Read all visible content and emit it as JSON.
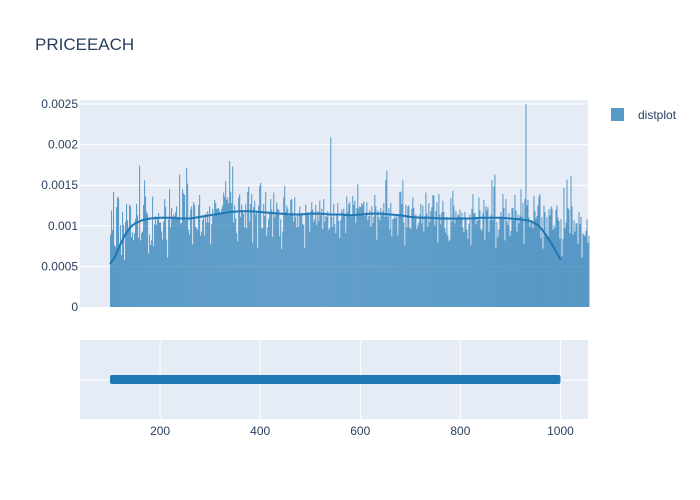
{
  "chart_data": {
    "type": "histogram",
    "title": "PRICEEACH",
    "legend": [
      {
        "name": "distplot",
        "color": "#1f77b4"
      }
    ],
    "legend_position": "top-right",
    "bar_color": "#1f77b4",
    "x_range": [
      40,
      1055
    ],
    "x_ticks": [
      200,
      400,
      600,
      800,
      1000
    ],
    "x_tick_labels": [
      "200",
      "400",
      "600",
      "800",
      "1000"
    ],
    "y_range": [
      0,
      0.00255
    ],
    "y_ticks": [
      0,
      0.0005,
      0.001,
      0.0015,
      0.002,
      0.0025
    ],
    "y_tick_labels": [
      "0",
      "0.0005",
      "0.001",
      "0.0015",
      "0.002",
      "0.0025"
    ],
    "hist_x_start": 100,
    "hist_bin_width": 2,
    "hist_densities": [
      0.00089,
      0.00119,
      0.00095,
      0.00142,
      0.00076,
      0.00074,
      0.00123,
      0.00136,
      0.00134,
      0.00078,
      0.00101,
      0.00064,
      0.00117,
      0.00101,
      0.00058,
      0.00105,
      0.00127,
      0.00107,
      0.00097,
      0.00126,
      0.00124,
      0.00086,
      0.00092,
      0.00082,
      0.00091,
      0.00109,
      0.00127,
      0.00113,
      0.00085,
      0.00174,
      0.00082,
      0.00091,
      0.00093,
      0.00126,
      0.00156,
      0.00136,
      0.00117,
      0.00114,
      0.00066,
      0.00089,
      0.00076,
      0.00082,
      0.00136,
      0.00075,
      0.00102,
      0.00112,
      0.00101,
      0.00108,
      0.00116,
      0.00104,
      0.00104,
      0.00093,
      0.00083,
      0.00105,
      0.00133,
      0.00123,
      0.00083,
      0.00061,
      0.00108,
      0.00145,
      0.00098,
      0.00122,
      0.00111,
      0.00114,
      0.00112,
      0.00117,
      0.00124,
      0.0011,
      0.00111,
      0.00163,
      0.00103,
      0.00104,
      0.00145,
      0.0014,
      0.00138,
      0.00107,
      0.00171,
      0.00152,
      0.00095,
      0.00089,
      0.0012,
      0.00124,
      0.00077,
      0.00129,
      0.00126,
      0.00099,
      0.00097,
      0.00095,
      0.00126,
      0.00138,
      0.00088,
      0.00093,
      0.00107,
      0.00113,
      0.00088,
      0.00115,
      0.00104,
      0.00118,
      0.00104,
      0.00124,
      0.00077,
      0.00102,
      0.00121,
      0.00112,
      0.00132,
      0.00128,
      0.00121,
      0.00121,
      0.00122,
      0.00118,
      0.00116,
      0.00121,
      0.00125,
      0.00141,
      0.00136,
      0.00155,
      0.00132,
      0.00135,
      0.00128,
      0.0018,
      0.00142,
      0.00128,
      0.00173,
      0.00104,
      0.00125,
      0.00109,
      0.00091,
      0.00081,
      0.00135,
      0.00139,
      0.00111,
      0.00126,
      0.00117,
      0.00115,
      0.00098,
      0.00127,
      0.00097,
      0.00142,
      0.00148,
      0.00105,
      0.00127,
      0.00139,
      0.00079,
      0.00123,
      0.00131,
      0.00114,
      0.00119,
      0.00073,
      0.00125,
      0.00149,
      0.00153,
      0.00097,
      0.00097,
      0.00127,
      0.00112,
      0.00142,
      0.00088,
      0.00098,
      0.00108,
      0.00116,
      0.00133,
      0.0012,
      0.00086,
      0.00141,
      0.00111,
      0.00114,
      0.00129,
      0.00121,
      0.0012,
      0.00087,
      0.00108,
      0.00071,
      0.00093,
      0.00135,
      0.00149,
      0.00117,
      0.00125,
      0.00121,
      0.00112,
      0.00116,
      0.00132,
      0.00133,
      0.00116,
      0.00105,
      0.00135,
      0.00111,
      0.00098,
      0.00113,
      0.00099,
      0.00124,
      0.00113,
      0.00116,
      0.00102,
      0.00101,
      0.00073,
      0.00126,
      0.00116,
      0.00117,
      0.00115,
      0.00092,
      0.00118,
      0.00129,
      0.0012,
      0.00105,
      0.00108,
      0.00126,
      0.00101,
      0.00118,
      0.00106,
      0.00131,
      0.00113,
      0.00121,
      0.00096,
      0.00133,
      0.00105,
      0.00112,
      0.00111,
      0.00118,
      0.00095,
      0.00097,
      0.00209,
      0.00111,
      0.00099,
      0.00127,
      0.00102,
      0.00091,
      0.00115,
      0.00128,
      0.00106,
      0.00085,
      0.00107,
      0.0012,
      0.00116,
      0.00121,
      0.00114,
      0.00091,
      0.00136,
      0.00117,
      0.00127,
      0.00129,
      0.00114,
      0.00111,
      0.00137,
      0.00126,
      0.00131,
      0.00104,
      0.00122,
      0.00151,
      0.00121,
      0.00124,
      0.00123,
      0.00128,
      0.00126,
      0.0013,
      0.00112,
      0.00116,
      0.00129,
      0.00107,
      0.00112,
      0.00119,
      0.00099,
      0.00124,
      0.00103,
      0.00111,
      0.00138,
      0.00124,
      0.00083,
      0.00119,
      0.00111,
      0.00107,
      0.00122,
      0.00113,
      0.00118,
      0.00128,
      0.00111,
      0.00156,
      0.00168,
      0.00111,
      0.00122,
      0.00095,
      0.00128,
      0.00087,
      0.00108,
      0.00109,
      0.00112,
      0.00109,
      0.00112,
      0.00088,
      0.00114,
      0.00142,
      0.00142,
      0.00127,
      0.00156,
      0.00104,
      0.00076,
      0.00126,
      0.00098,
      0.00124,
      0.00125,
      0.00098,
      0.00096,
      0.00121,
      0.00135,
      0.00122,
      0.00109,
      0.00114,
      0.00096,
      0.00101,
      0.00104,
      0.00114,
      0.00127,
      0.00103,
      0.00125,
      0.00093,
      0.00112,
      0.00141,
      0.00115,
      0.00099,
      0.00128,
      0.00105,
      0.00118,
      0.00123,
      0.00138,
      0.00137,
      0.00101,
      0.00118,
      0.00129,
      0.00079,
      0.00139,
      0.00114,
      0.00102,
      0.00117,
      0.00131,
      0.00117,
      0.00097,
      0.00091,
      0.00111,
      0.00088,
      0.00081,
      0.00083,
      0.00134,
      0.00105,
      0.00143,
      0.00125,
      0.00103,
      0.00118,
      0.00108,
      0.00114,
      0.00113,
      0.0012,
      0.00109,
      0.00116,
      0.00098,
      0.00092,
      0.00117,
      0.0011,
      0.00095,
      0.00084,
      0.00102,
      0.00114,
      0.00076,
      0.00121,
      0.00139,
      0.00115,
      0.00116,
      0.00102,
      0.00109,
      0.00106,
      0.00135,
      0.00119,
      0.00096,
      0.00094,
      0.00116,
      0.00132,
      0.00083,
      0.00124,
      0.00119,
      0.00123,
      0.00092,
      0.00107,
      0.00113,
      0.00156,
      0.00107,
      0.00148,
      0.00163,
      0.00073,
      0.00105,
      0.00086,
      0.00095,
      0.00111,
      0.00117,
      0.0011,
      0.00139,
      0.00122,
      0.00082,
      0.00133,
      0.00106,
      0.00101,
      0.00116,
      0.00087,
      0.00094,
      0.00122,
      0.00122,
      0.00107,
      0.00138,
      0.00119,
      0.00093,
      0.00114,
      0.00103,
      0.00113,
      0.00145,
      0.00111,
      0.00128,
      0.00078,
      0.00133,
      0.0025,
      0.00125,
      0.00132,
      0.0011,
      0.00099,
      0.00106,
      0.00106,
      0.00097,
      0.00137,
      0.00118,
      0.00109,
      0.00112,
      0.00125,
      0.00136,
      0.00139,
      0.00085,
      0.00111,
      0.00072,
      0.00125,
      0.00117,
      0.00089,
      0.00111,
      0.00084,
      0.0012,
      0.00113,
      0.00124,
      0.00121,
      0.00095,
      0.00101,
      0.00097,
      0.0012,
      0.00125,
      0.0011,
      0.00106,
      0.00084,
      0.00108,
      0.00063,
      0.00084,
      0.00147,
      0.00097,
      0.00104,
      0.00157,
      0.00122,
      0.0012,
      0.00091,
      0.00161,
      0.00124,
      0.00089,
      0.00107,
      0.00093,
      0.00103,
      0.00103,
      0.00078,
      0.00117,
      0.00102,
      0.00111,
      0.00061,
      0.00091,
      0.00089,
      0.00087,
      0.00094,
      0.00108,
      0.00079,
      0.00088
    ],
    "kde_x": [
      100,
      110,
      120,
      130,
      140,
      150,
      165,
      180,
      200,
      220,
      240,
      260,
      280,
      300,
      320,
      340,
      360,
      380,
      400,
      420,
      440,
      460,
      480,
      500,
      520,
      540,
      560,
      580,
      600,
      620,
      640,
      660,
      680,
      700,
      720,
      740,
      760,
      780,
      800,
      820,
      840,
      860,
      880,
      900,
      920,
      940,
      955,
      965,
      975,
      985,
      995,
      1000
    ],
    "kde_y": [
      0.00053,
      0.00062,
      0.00076,
      0.00089,
      0.00098,
      0.00103,
      0.00107,
      0.00109,
      0.0011,
      0.0011,
      0.00109,
      0.00109,
      0.00111,
      0.00113,
      0.00115,
      0.00117,
      0.00118,
      0.00118,
      0.00117,
      0.00116,
      0.00115,
      0.00114,
      0.00114,
      0.00115,
      0.00115,
      0.00114,
      0.00114,
      0.00113,
      0.00114,
      0.00115,
      0.00115,
      0.00114,
      0.00113,
      0.00111,
      0.0011,
      0.0011,
      0.00109,
      0.00109,
      0.00109,
      0.00109,
      0.0011,
      0.0011,
      0.0011,
      0.00109,
      0.00108,
      0.00106,
      0.00101,
      0.00094,
      0.00085,
      0.00075,
      0.00064,
      0.00058
    ],
    "rug_range": [
      100,
      1000
    ]
  }
}
